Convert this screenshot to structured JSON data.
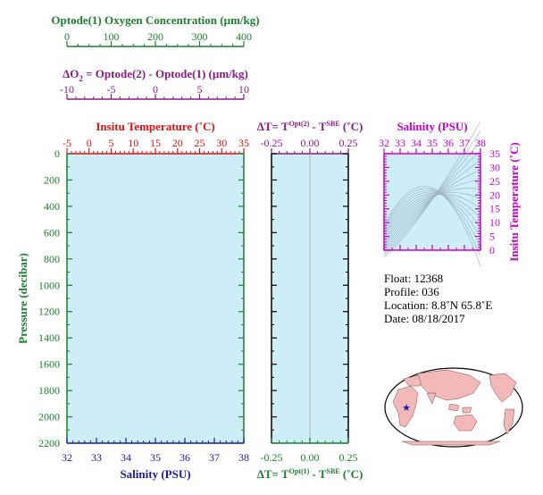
{
  "colors": {
    "oxygen": "#1a7f2e",
    "delta_o2": "#8a1a8a",
    "temperature": "#e01010",
    "salinity": "#1a1aa8",
    "ts": "#cc00cc",
    "pressure": "#1a7f2e",
    "plot_bg": "#cdeef7",
    "black": "#000000"
  },
  "oxygen_axis": {
    "label": "Optode(1) Oxygen Concentration (µm/kg)",
    "ticks": [
      "0",
      "100",
      "200",
      "300",
      "400"
    ]
  },
  "delta_o2_axis": {
    "label_pre": "ΔO",
    "label_sub": "2",
    "label_post": " = Optode(2) - Optode(1)     (µm/kg)",
    "ticks": [
      "-10",
      "-5",
      "0",
      "5",
      "10"
    ]
  },
  "temp_axis": {
    "label": "Insitu Temperature (˚C)",
    "ticks": [
      "-5",
      "0",
      "5",
      "10",
      "15",
      "20",
      "25",
      "30",
      "35"
    ]
  },
  "deltaT_top_axis": {
    "label_pre": "ΔT= T",
    "label_sup1": "Opt(2)",
    "label_mid": " - T",
    "label_sup2": "SBE",
    "label_post": " (˚C)",
    "ticks": [
      "-0.25",
      "0.00",
      "0.25"
    ]
  },
  "deltaT_bottom_axis": {
    "label_pre": "ΔT= T",
    "label_sup1": "Opt(1)",
    "label_mid": " - T",
    "label_sup2": "SBE",
    "label_post": " (˚C)",
    "ticks": [
      "-0.25",
      "0.00",
      "0.25"
    ]
  },
  "pressure_axis": {
    "label": "Pressure (decibar)",
    "ticks": [
      "0",
      "200",
      "400",
      "600",
      "800",
      "1000",
      "1200",
      "1400",
      "1600",
      "1800",
      "2000",
      "2200"
    ]
  },
  "salinity_axis": {
    "label": "Salinity (PSU)",
    "ticks": [
      "32",
      "33",
      "34",
      "35",
      "36",
      "37",
      "38"
    ]
  },
  "ts_plot": {
    "x_label": "Salinity (PSU)",
    "x_ticks": [
      "32",
      "33",
      "34",
      "35",
      "36",
      "37",
      "38"
    ],
    "y_label": "Insitu Temperature (˚C)",
    "y_ticks": [
      "0",
      "5",
      "10",
      "15",
      "20",
      "25",
      "30",
      "35"
    ]
  },
  "info": {
    "float": "Float:  12368",
    "profile": "Profile:  036",
    "location": "Location:  8.8˚N  65.8˚E",
    "date": "Date:  08/18/2017"
  },
  "map": {
    "marker_lat": 8.8,
    "marker_lon": 65.8
  },
  "chart_data": [
    {
      "type": "line",
      "series": [],
      "xlabel": "Insitu Temperature (˚C)",
      "x2label": "Salinity (PSU)",
      "x3label": "Optode(1) Oxygen Concentration (µm/kg)",
      "x4label": "ΔO2 = Optode(2) - Optode(1)     (µm/kg)",
      "ylabel": "Pressure (decibar)",
      "xlim": [
        -5,
        35
      ],
      "x2lim": [
        32,
        38
      ],
      "x3lim": [
        0,
        400
      ],
      "x4lim": [
        -10,
        10
      ],
      "ylim": [
        2200,
        0
      ]
    },
    {
      "type": "line",
      "series": [],
      "xlabel": "ΔT= TOpt(1) - TSBE (˚C)",
      "x2label": "ΔT= TOpt(2) - TSBE (˚C)",
      "ylabel": "",
      "xlim": [
        -0.25,
        0.25
      ],
      "ylim": [
        2200,
        0
      ]
    },
    {
      "type": "scatter",
      "series": [],
      "xlabel": "Salinity (PSU)",
      "ylabel": "Insitu Temperature (˚C)",
      "xlim": [
        32,
        38
      ],
      "ylim": [
        0,
        35
      ]
    }
  ]
}
